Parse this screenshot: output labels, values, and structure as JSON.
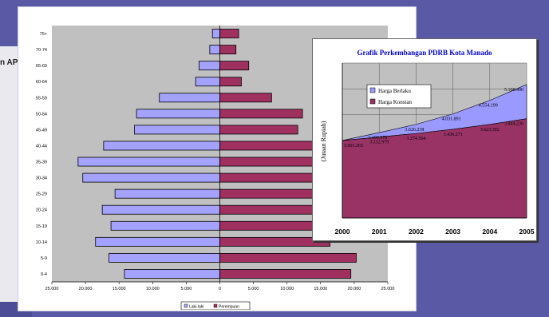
{
  "background": {
    "left_fragment_text": "n API"
  },
  "chart_data": [
    {
      "type": "bar",
      "orientation": "horizontal",
      "categories": [
        "0-4",
        "5-9",
        "10-14",
        "15-19",
        "20-24",
        "25-29",
        "30-34",
        "35-39",
        "40-44",
        "45-49",
        "50-54",
        "55-59",
        "60-64",
        "65-69",
        "70-74",
        "75+"
      ],
      "series": [
        {
          "name": "Laki-laki",
          "color": "#a3a3ff",
          "values": [
            14200,
            16500,
            18500,
            16200,
            17500,
            15600,
            20400,
            21100,
            17300,
            12700,
            12400,
            9000,
            3600,
            3100,
            1500,
            1100
          ]
        },
        {
          "name": "Perempuan",
          "color": "#a0305e",
          "values": [
            19500,
            20300,
            16400,
            15200,
            16800,
            17500,
            17800,
            18200,
            15500,
            11600,
            12300,
            7700,
            3200,
            4300,
            2400,
            2800
          ]
        }
      ],
      "x_tick_labels": [
        "25.000",
        "20.000",
        "15.000",
        "10.000",
        "5.000",
        "0",
        "5.000",
        "10.000",
        "15.000",
        "20.000",
        "25.000"
      ],
      "xlim": [
        -25000,
        25000
      ],
      "grid": false,
      "plot_background": "#c0c0c0",
      "legend": {
        "position": "bottom",
        "entries": [
          "Laki-laki",
          "Perempuan"
        ]
      }
    },
    {
      "type": "area",
      "title": "Grafik Perkembangan PDRB Kota Manado",
      "ylabel": "(Jutaan Rupiah)",
      "categories": [
        "2000",
        "2001",
        "2002",
        "2003",
        "2004",
        "2005"
      ],
      "series": [
        {
          "name": "Harga Berlaku",
          "color": "#9999ff",
          "values": [
            3001265,
            3308570,
            3626238,
            4031891,
            4554199,
            5169490
          ],
          "labels": [
            "",
            "3.308.570",
            "3.626.238",
            "4.031.891",
            "4.554.199",
            "5.169.490"
          ]
        },
        {
          "name": "Harga Konstan",
          "color": "#993366",
          "values": [
            3001265,
            3132979,
            3274564,
            3436271,
            3623392,
            3844230
          ],
          "labels": [
            "3.001.265",
            "3.132.979",
            "3.274.564",
            "3.436.271",
            "3.623.392",
            "3.844.230"
          ]
        }
      ],
      "ylim": [
        0,
        6000000
      ],
      "grid": true,
      "plot_background": "#c0c0c0",
      "legend": {
        "position": "top-left",
        "entries": [
          "Harga Berlaku",
          "Harga Konstan"
        ]
      }
    }
  ]
}
